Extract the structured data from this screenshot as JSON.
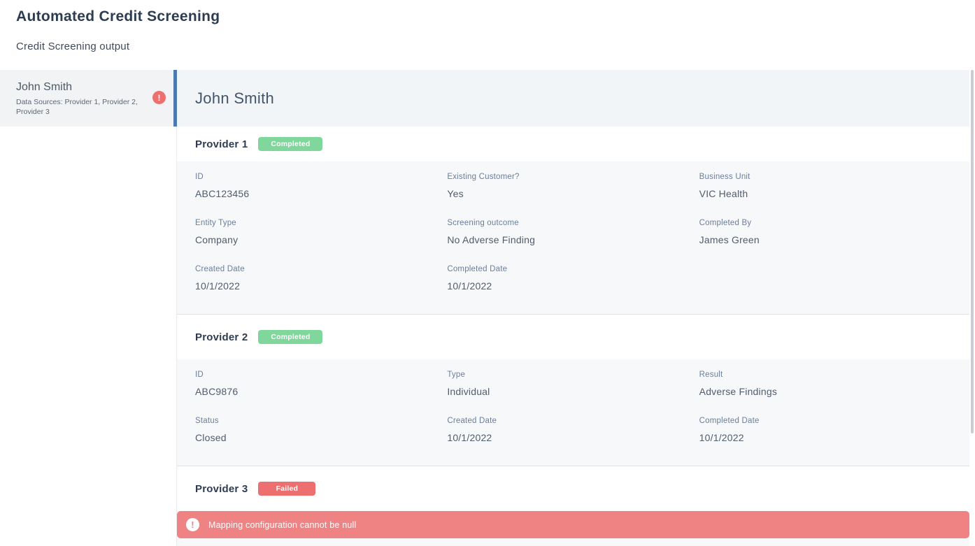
{
  "page": {
    "title": "Automated Credit Screening",
    "subtitle": "Credit Screening output"
  },
  "sidebar": {
    "items": [
      {
        "name": "John Smith",
        "subtitle": "Data Sources: Provider 1, Provider 2, Provider 3",
        "selected": true,
        "alert": "error"
      }
    ]
  },
  "main": {
    "heading": "John Smith",
    "providers": [
      {
        "title": "Provider 1",
        "badge": {
          "label": "Completed",
          "color": "#7fd79b"
        },
        "fields": [
          {
            "label": "ID",
            "value": "ABC123456"
          },
          {
            "label": "Existing Customer?",
            "value": "Yes"
          },
          {
            "label": "Business Unit",
            "value": "VIC Health"
          },
          {
            "label": "Entity Type",
            "value": "Company"
          },
          {
            "label": "Screening outcome",
            "value": "No Adverse Finding"
          },
          {
            "label": "Completed By",
            "value": "James Green"
          },
          {
            "label": "Created Date",
            "value": "10/1/2022"
          },
          {
            "label": "Completed Date",
            "value": "10/1/2022"
          }
        ]
      },
      {
        "title": "Provider 2",
        "badge": {
          "label": "Completed",
          "color": "#7fd79b"
        },
        "fields": [
          {
            "label": "ID",
            "value": "ABC9876"
          },
          {
            "label": "Type",
            "value": "Individual"
          },
          {
            "label": "Result",
            "value": "Adverse Findings"
          },
          {
            "label": "Status",
            "value": "Closed"
          },
          {
            "label": "Created Date",
            "value": "10/1/2022"
          },
          {
            "label": "Completed Date",
            "value": "10/1/2022"
          }
        ]
      },
      {
        "title": "Provider 3",
        "badge": {
          "label": "Failed",
          "color": "#ee6f6f"
        },
        "fields": [],
        "error": "Mapping configuration cannot be null"
      }
    ]
  },
  "icons": {
    "sidebar_alert": "exclamation-circle",
    "banner_alert": "exclamation-circle",
    "alert_glyph": "!"
  },
  "colors": {
    "accent_bar": "#4a7ab0",
    "alert_red": "#ee6f6f",
    "banner_bg": "#ef8384",
    "badge_completed": "#7fd79b",
    "badge_failed": "#ee6f6f"
  }
}
